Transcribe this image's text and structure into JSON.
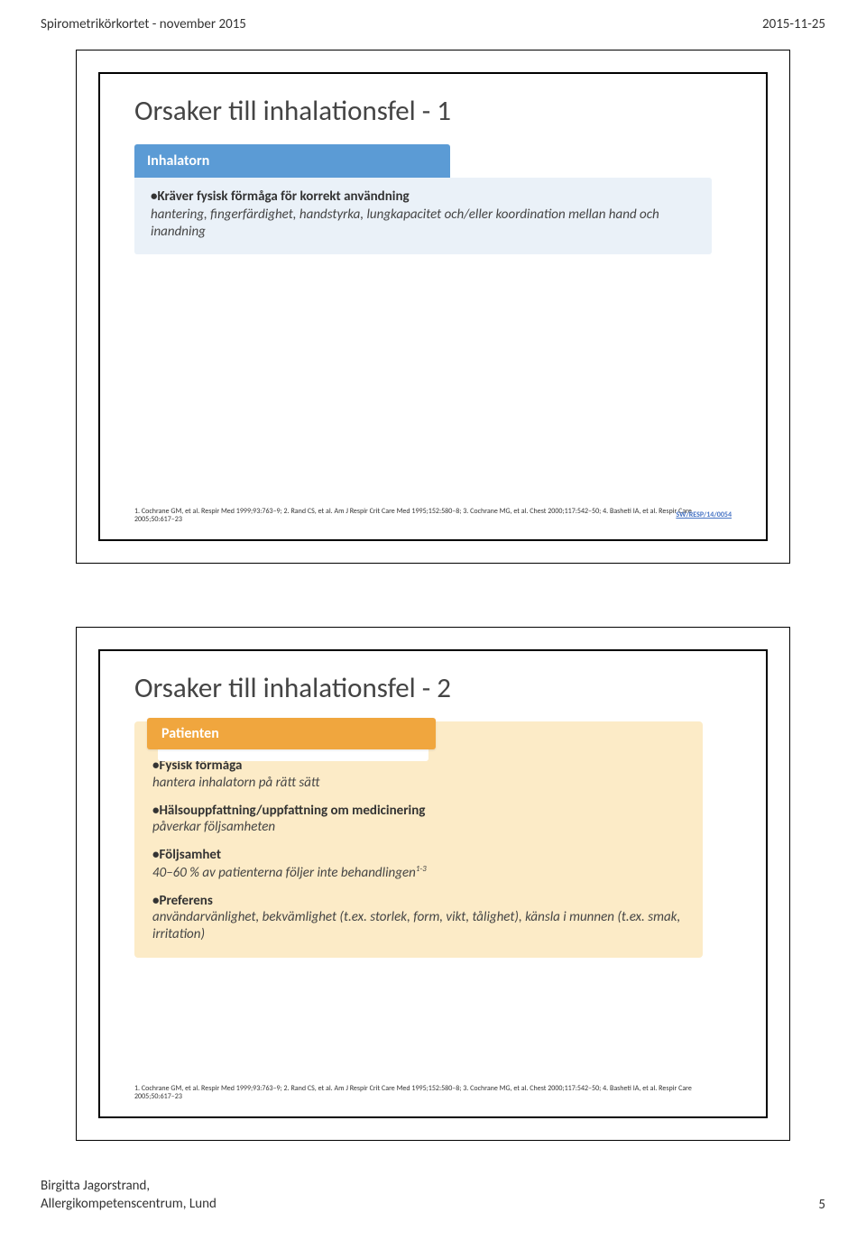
{
  "page": {
    "header_left": "Spirometrikörkortet - november 2015",
    "header_right": "2015-11-25",
    "footer_author1": "Birgitta Jagorstrand,",
    "footer_author2": "Allergikompetenscentrum, Lund",
    "page_number": "5"
  },
  "slide1": {
    "title": "Orsaker till inhalationsfel - 1",
    "header": "Inhalatorn",
    "bullet_lead": "•Kräver fysisk förmåga för korrekt användning",
    "bullet_sub": "hantering, fingerfärdighet, handstyrka, lungkapacitet och/eller koordination mellan hand och inandning",
    "citation": "1. Cochrane GM, et al. Respir Med 1999;93:763–9; 2. Rand CS, et al. Am J Respir Crit Care Med 1995;152:580–8; 3. Cochrane MG, et al. Chest 2000;117:542–50; 4. Basheti IA, et al. Respir Care 2005;50:617–23",
    "swcode": "SW/RESP/14/0054"
  },
  "slide2": {
    "title": "Orsaker till inhalationsfel - 2",
    "header": "Patienten",
    "items": [
      {
        "lead": "•Fysisk förmåga",
        "sub": "hantera inhalatorn på rätt sätt"
      },
      {
        "lead": "•Hälsouppfattning/uppfattning om medicinering",
        "sub": "påverkar följsamheten"
      },
      {
        "lead": "•Följsamhet",
        "sub": "40–60 % av patienterna följer inte behandlingen",
        "sup": "1-3"
      },
      {
        "lead": "•Preferens",
        "sub": "användarvänlighet, bekvämlighet (t.ex. storlek, form, vikt, tålighet), känsla i munnen (t.ex. smak, irritation)"
      }
    ],
    "citation": "1. Cochrane GM, et al. Respir Med 1999;93:763–9; 2. Rand CS, et al. Am J Respir Crit Care Med 1995;152:580–8; 3. Cochrane MG, et al. Chest 2000;117:542–50; 4. Basheti IA, et al. Respir Care 2005;50:617–23"
  },
  "colors": {
    "slide1_header_bg": "#5b9bd5",
    "slide1_body_bg": "#eaf1f8",
    "slide2_header_bg": "#f0a63e",
    "slide2_body_bg": "#fcebc7",
    "swcode_color": "#4472c4"
  }
}
